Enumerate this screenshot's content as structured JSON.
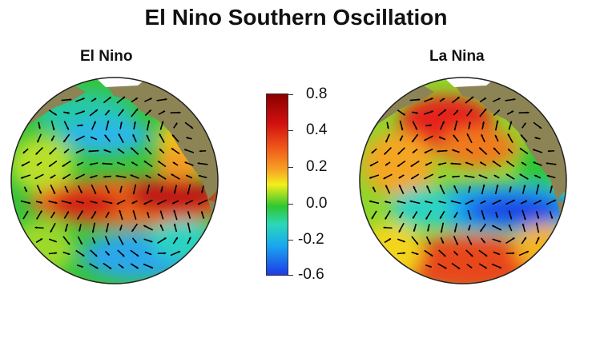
{
  "title": "El Nino Southern Oscillation",
  "panels": [
    {
      "label": "El Nino",
      "equator_anomaly": "positive"
    },
    {
      "label": "La Nina",
      "equator_anomaly": "negative"
    }
  ],
  "colorbar": {
    "ticks": [
      "0.8",
      "0.4",
      "0.2",
      "0.0",
      "-0.2",
      "-0.6"
    ],
    "colors": [
      "#8b0000",
      "#d01010",
      "#f7a425",
      "#f3ee1c",
      "#2fc72f",
      "#2bd8b8",
      "#19a6f0",
      "#1d3be8"
    ]
  },
  "colors": {
    "land": "#8c8455",
    "ice": "#ffffff",
    "arrows": "#000000"
  }
}
